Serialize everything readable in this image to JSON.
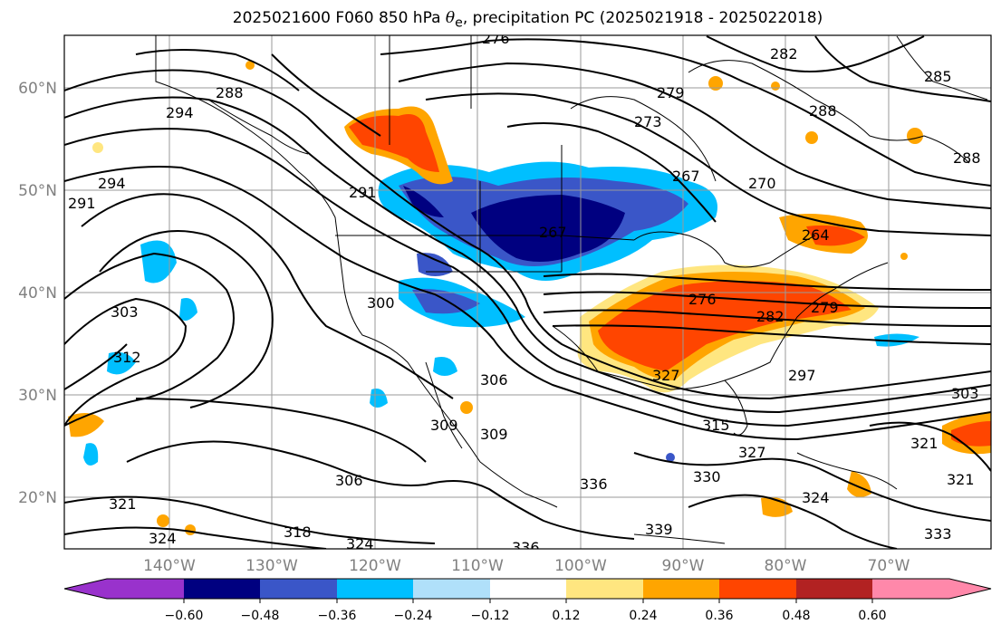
{
  "title": {
    "prefix": "2025021600 F060 850 hPa ",
    "theta_symbol": "θ",
    "theta_subscript": "e",
    "suffix": ", precipitation PC (2025021918 - 2025022018)"
  },
  "map": {
    "lat_labels": [
      "60°N",
      "50°N",
      "40°N",
      "30°N",
      "20°N"
    ],
    "lon_labels": [
      "140°W",
      "130°W",
      "120°W",
      "110°W",
      "100°W",
      "90°W",
      "80°W",
      "70°W"
    ],
    "contour_labels": [
      "276",
      "288",
      "294",
      "291",
      "294",
      "291",
      "279",
      "273",
      "288",
      "282",
      "285",
      "288",
      "267",
      "270",
      "264",
      "267",
      "300",
      "303",
      "312",
      "276",
      "282",
      "279",
      "306",
      "309",
      "309",
      "297",
      "303",
      "306",
      "321",
      "318",
      "324",
      "336",
      "336",
      "330",
      "339",
      "327",
      "324",
      "321",
      "315",
      "333",
      "321",
      "324",
      "327"
    ],
    "colors": {
      "land_outline": "#000000",
      "grid": "#9a9a9a",
      "axis_label": "#808080"
    }
  },
  "colorbar": {
    "tick_labels": [
      "−0.60",
      "−0.48",
      "−0.36",
      "−0.24",
      "−0.12",
      "0.12",
      "0.24",
      "0.36",
      "0.48",
      "0.60"
    ],
    "colors": [
      "#9932cc",
      "#000080",
      "#3a56c8",
      "#00bfff",
      "#b0e0fa",
      "#ffffff",
      "#ffe680",
      "#ffa500",
      "#ff4500",
      "#b22222",
      "#ff88aa"
    ]
  }
}
